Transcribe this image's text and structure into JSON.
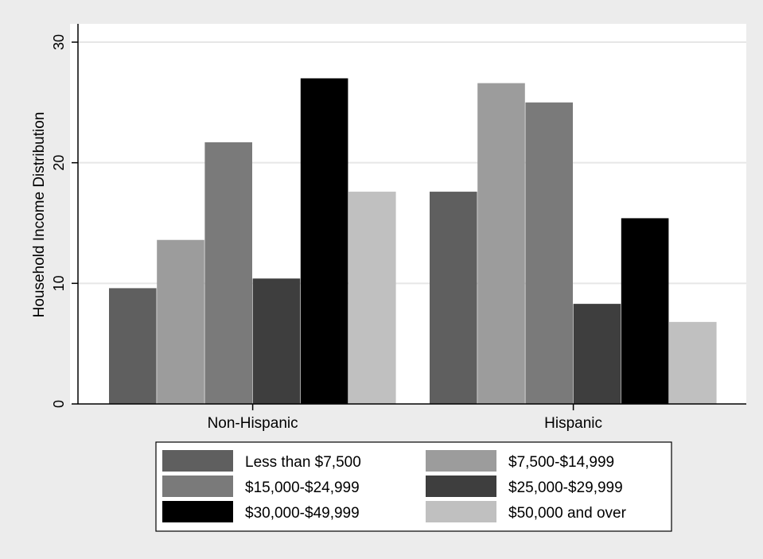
{
  "chart_data": {
    "type": "bar",
    "title": "",
    "xlabel": "",
    "ylabel": "Household Income Distribution",
    "ylim": [
      0,
      30
    ],
    "yticks": [
      0,
      10,
      20,
      30
    ],
    "grid": true,
    "legend_position": "bottom",
    "categories": [
      "Non-Hispanic",
      "Hispanic"
    ],
    "series": [
      {
        "name": "Less than $7,500",
        "color": "#5f5f5f",
        "values": [
          9.6,
          17.6
        ]
      },
      {
        "name": "$7,500-$14,999",
        "color": "#9c9c9c",
        "values": [
          13.6,
          26.6
        ]
      },
      {
        "name": "$15,000-$24,999",
        "color": "#7a7a7a",
        "values": [
          21.7,
          25.0
        ]
      },
      {
        "name": "$25,000-$29,999",
        "color": "#3e3e3e",
        "values": [
          10.4,
          8.3
        ]
      },
      {
        "name": "$30,000-$49,999",
        "color": "#000000",
        "values": [
          27.0,
          15.4
        ]
      },
      {
        "name": "$50,000 and over",
        "color": "#c0c0c0",
        "values": [
          17.6,
          6.8
        ]
      }
    ]
  },
  "colors": {
    "page_background": "#ececec",
    "plot_background": "#ffffff",
    "grid": "#e6e6e6"
  }
}
